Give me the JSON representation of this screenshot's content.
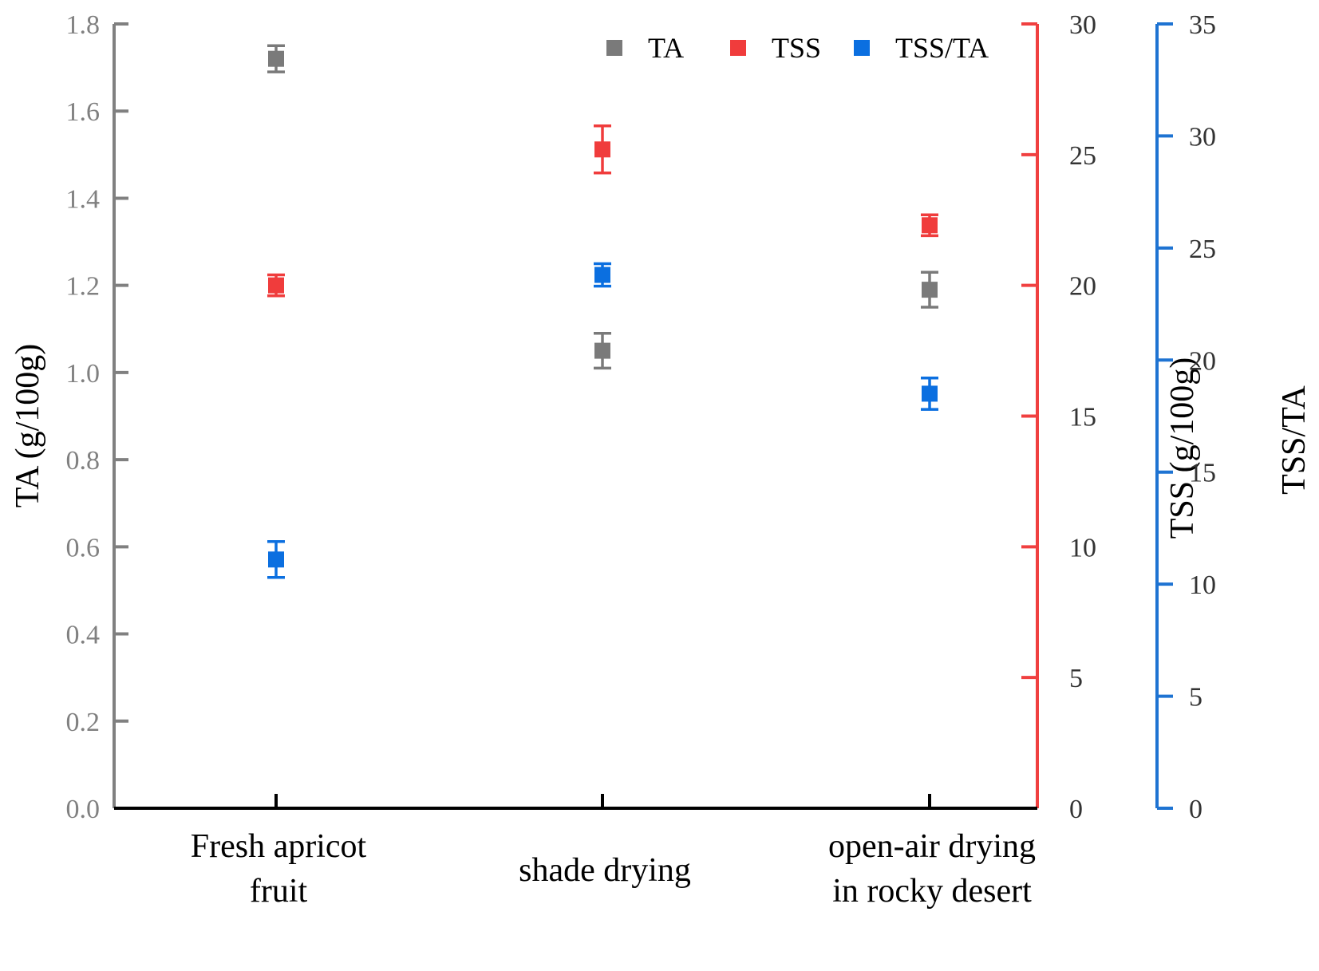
{
  "chart_data": {
    "type": "scatter",
    "categories": [
      "Fresh apricot fruit",
      "shade drying",
      "open-air drying in rocky desert"
    ],
    "category_lines": [
      [
        "Fresh apricot",
        "fruit"
      ],
      [
        "shade drying"
      ],
      [
        "open-air drying",
        "in rocky desert"
      ]
    ],
    "axes": {
      "left": {
        "title": "TA (g/100g)",
        "range": [
          0,
          1.8
        ],
        "ticks": [
          "0.0",
          "0.2",
          "0.4",
          "0.6",
          "0.8",
          "1.0",
          "1.2",
          "1.4",
          "1.6",
          "1.8"
        ],
        "color": "#808080",
        "title_color": "#000000"
      },
      "right1": {
        "title": "TSS (g/100g)",
        "range": [
          0,
          30
        ],
        "ticks": [
          "0",
          "5",
          "10",
          "15",
          "20",
          "25",
          "30"
        ],
        "color": "#f04040",
        "title_color": "#000000"
      },
      "right2": {
        "title": "TSS/TA",
        "range": [
          0,
          35
        ],
        "ticks": [
          "0",
          "5",
          "10",
          "15",
          "20",
          "25",
          "30",
          "35"
        ],
        "color": "#1e73d2",
        "title_color": "#000000"
      }
    },
    "series": [
      {
        "name": "TA",
        "axis": "left",
        "color": "#7a7a7a",
        "values": [
          1.72,
          1.05,
          1.19
        ],
        "errors": [
          0.03,
          0.04,
          0.04
        ]
      },
      {
        "name": "TSS",
        "axis": "right1",
        "color": "#f03c3c",
        "values": [
          20.0,
          25.2,
          22.3
        ],
        "errors": [
          0.4,
          0.9,
          0.4
        ]
      },
      {
        "name": "TSS/TA",
        "axis": "right2",
        "color": "#0b6fe0",
        "values": [
          11.1,
          23.8,
          18.5
        ],
        "errors": [
          0.8,
          0.5,
          0.7
        ]
      }
    ],
    "legend": {
      "placement": "top-right"
    },
    "grid": false
  }
}
